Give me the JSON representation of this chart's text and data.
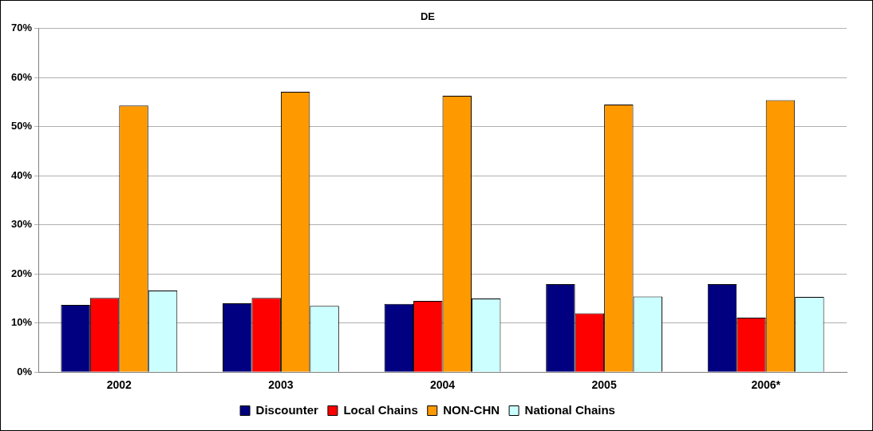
{
  "chart_data": {
    "type": "bar",
    "title": "DE",
    "categories": [
      "2002",
      "2003",
      "2004",
      "2005",
      "2006*"
    ],
    "series": [
      {
        "name": "Discounter",
        "color": "#000080",
        "values": [
          13.7,
          14.0,
          13.9,
          17.9,
          17.9
        ]
      },
      {
        "name": "Local Chains",
        "color": "#ff0000",
        "values": [
          15.1,
          15.1,
          14.5,
          12.0,
          11.1
        ]
      },
      {
        "name": "NON-CHN",
        "color": "#ff9900",
        "values": [
          54.3,
          57.1,
          56.3,
          54.5,
          55.4
        ]
      },
      {
        "name": "National Chains",
        "color": "#ccffff",
        "values": [
          16.6,
          13.5,
          15.0,
          15.4,
          15.3
        ]
      }
    ],
    "ylim": [
      0,
      70
    ],
    "yticks": [
      {
        "value": 0,
        "label": "0%"
      },
      {
        "value": 10,
        "label": "10%"
      },
      {
        "value": 20,
        "label": "20%"
      },
      {
        "value": 30,
        "label": "30%"
      },
      {
        "value": 40,
        "label": "40%"
      },
      {
        "value": 50,
        "label": "50%"
      },
      {
        "value": 60,
        "label": "60%"
      },
      {
        "value": 70,
        "label": "70%"
      }
    ],
    "grid": "y",
    "legend": "bottom"
  }
}
